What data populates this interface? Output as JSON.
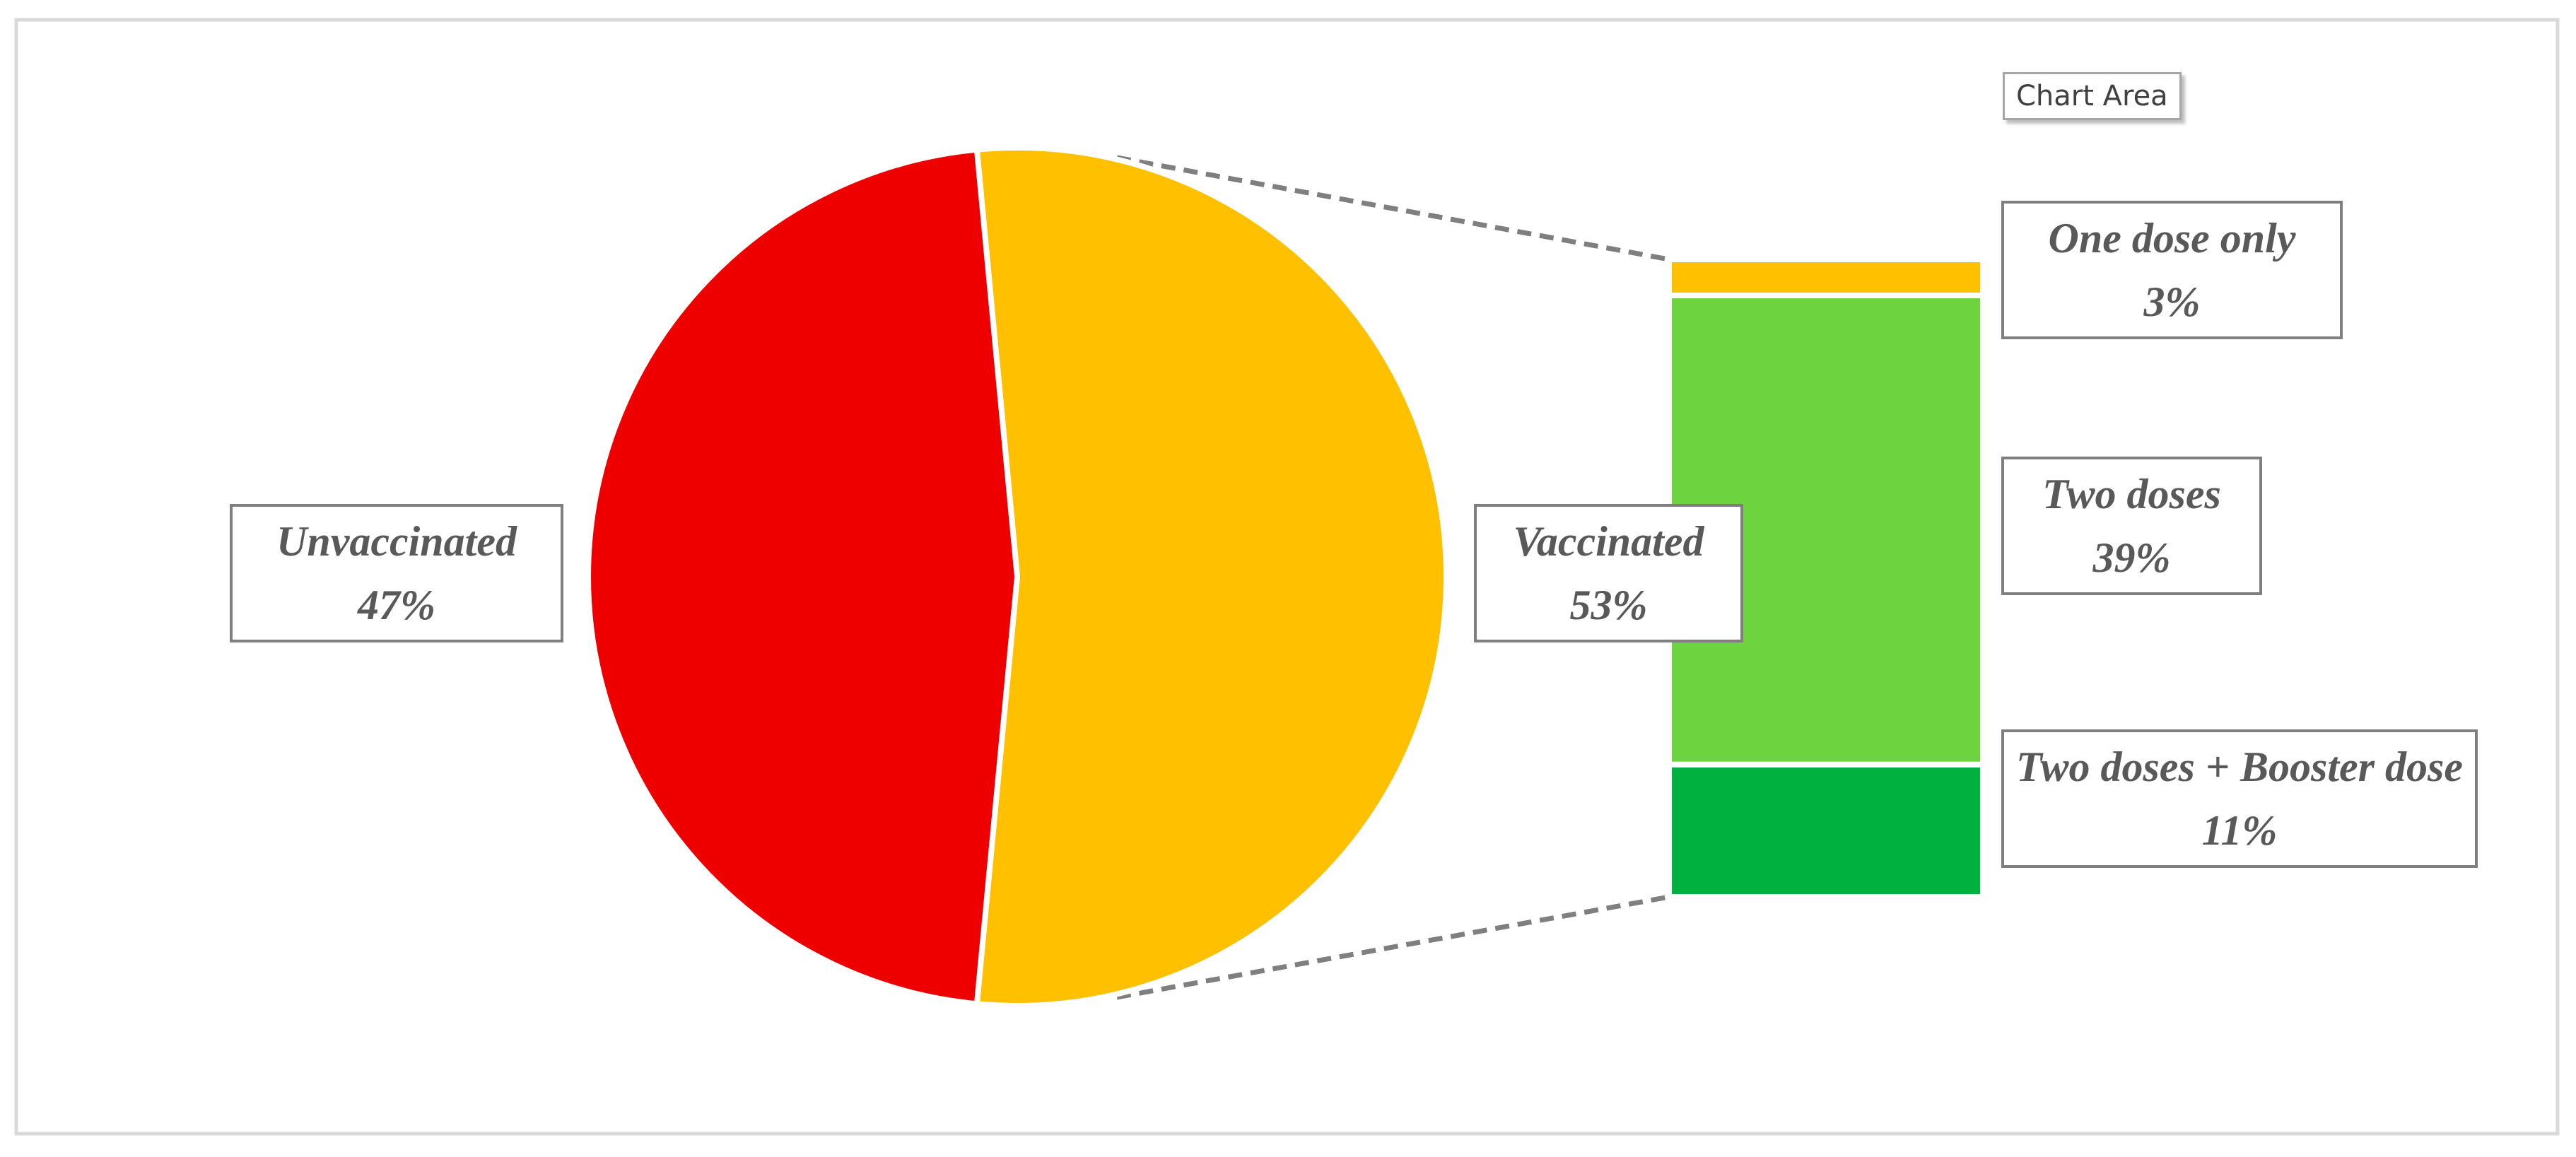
{
  "chart_data": {
    "type": "bar-of-pie",
    "tooltip": "Chart Area",
    "categories": [
      "Unvaccinated",
      "Vaccinated"
    ],
    "values": [
      47,
      53
    ],
    "value_labels": [
      "47%",
      "53%"
    ],
    "colors": [
      "#ee0000",
      "#ffc000"
    ],
    "breakdown": {
      "categories": [
        "One dose only",
        "Two doses",
        "Two doses + Booster dose"
      ],
      "values": [
        3,
        39,
        11
      ],
      "value_labels": [
        "3%",
        "39%",
        "11%"
      ],
      "colors": [
        "#ffc000",
        "#6dd440",
        "#00b140"
      ]
    }
  }
}
